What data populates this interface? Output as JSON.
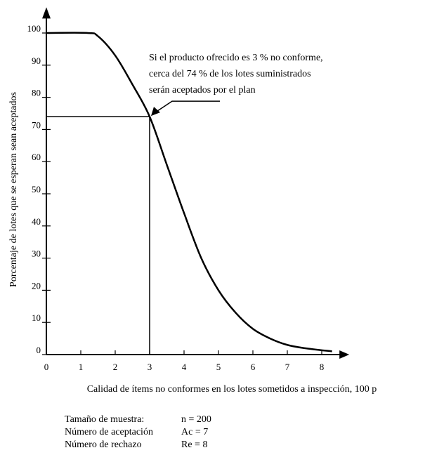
{
  "chart_data": {
    "type": "line",
    "y_label": "Porcentaje de lotes  que se esperan sean aceptados",
    "x_label": "Calidad de ítems no conformes en los lotes sometidos a inspección, 100 p",
    "annotation": [
      "Si el producto ofrecido es 3 % no conforme,",
      "cerca del 74 % de los lotes suministrados",
      "serán aceptados por el plan"
    ],
    "x": [
      0,
      1.2,
      1.5,
      2,
      2.5,
      3,
      3.5,
      4,
      4.5,
      5,
      5.5,
      6,
      6.5,
      7,
      7.5,
      8.3
    ],
    "values": [
      100,
      100,
      99,
      93,
      84,
      74,
      59,
      44,
      30,
      20,
      13,
      8,
      5,
      3,
      2,
      1
    ],
    "color": "#000000",
    "reference": {
      "x": 3,
      "y": 74
    },
    "xlim": [
      0,
      8.8
    ],
    "xticks": [
      0,
      1,
      2,
      3,
      4,
      5,
      6,
      7,
      8
    ],
    "ylim": [
      0,
      108
    ],
    "yticks": [
      0,
      10,
      20,
      30,
      40,
      50,
      60,
      70,
      80,
      90,
      100
    ]
  },
  "plan": [
    [
      "Tamaño de muestra:",
      "n = 200"
    ],
    [
      "Número de aceptación",
      "Ac = 7"
    ],
    [
      "Número de rechazo",
      "Re = 8"
    ]
  ]
}
